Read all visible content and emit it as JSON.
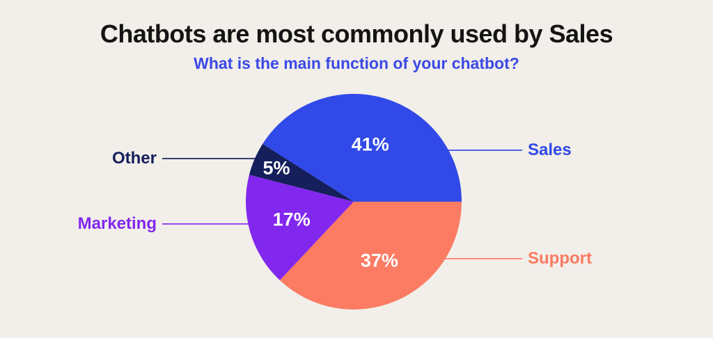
{
  "palette": {
    "background": "#F2EEE9",
    "title_color": "#141414",
    "subtitle_color": "#3A49E5"
  },
  "chart_data": {
    "type": "pie",
    "title": "Chatbots are most commonly used by Sales",
    "subtitle": "What is the main function of your chatbot?",
    "unit": "percent",
    "start_angle_deg_from_east": 0,
    "direction": "counterclockwise",
    "legend_position": "callouts-beside-slices",
    "slices": [
      {
        "label": "Sales",
        "value": 41,
        "value_label": "41%",
        "color": "#3049E8",
        "callout_side": "right"
      },
      {
        "label": "Other",
        "value": 5,
        "value_label": "5%",
        "color": "#141F5C",
        "callout_side": "left"
      },
      {
        "label": "Marketing",
        "value": 17,
        "value_label": "17%",
        "color": "#8227EE",
        "callout_side": "left"
      },
      {
        "label": "Support",
        "value": 37,
        "value_label": "37%",
        "color": "#FB7B63",
        "callout_side": "right"
      }
    ]
  }
}
